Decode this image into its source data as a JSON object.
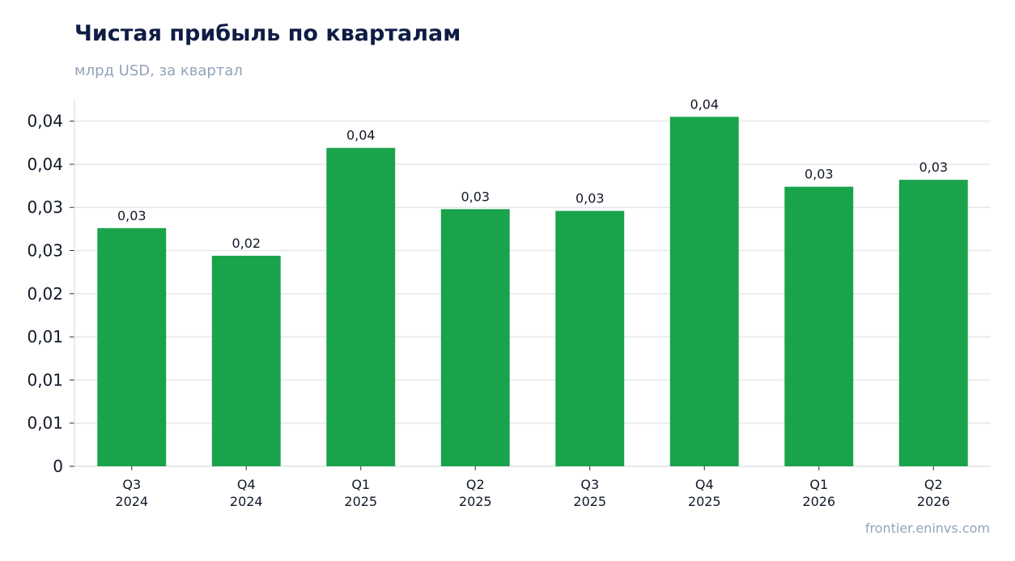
{
  "header": {
    "title": "Чистая прибыль по кварталам",
    "subtitle": "млрд USD, за квартал"
  },
  "footer": {
    "source": "frontier.eninvs.com"
  },
  "colors": {
    "bar": "#19a34a",
    "grid": "#e5e7eb",
    "axis": "#d1d5db",
    "title": "#0f1d45",
    "muted": "#94a3b8"
  },
  "chart_data": {
    "type": "bar",
    "title": "Чистая прибыль по кварталам",
    "subtitle": "млрд USD, за квартал",
    "categories": [
      [
        "Q3",
        "2024"
      ],
      [
        "Q4",
        "2024"
      ],
      [
        "Q1",
        "2025"
      ],
      [
        "Q2",
        "2025"
      ],
      [
        "Q3",
        "2025"
      ],
      [
        "Q4",
        "2025"
      ],
      [
        "Q1",
        "2026"
      ],
      [
        "Q2",
        "2026"
      ]
    ],
    "values": [
      0.0276,
      0.0244,
      0.0369,
      0.0298,
      0.0296,
      0.0405,
      0.0324,
      0.0332
    ],
    "data_labels": [
      "0,03",
      "0,02",
      "0,04",
      "0,03",
      "0,03",
      "0,04",
      "0,03",
      "0,03"
    ],
    "y_ticks": [
      0,
      0.005,
      0.01,
      0.015,
      0.02,
      0.025,
      0.03,
      0.035,
      0.04
    ],
    "y_tick_labels": [
      "0",
      "0,01",
      "0,01",
      "0,01",
      "0,02",
      "0,03",
      "0,03",
      "0,04",
      "0,04"
    ],
    "ylim": [
      0,
      0.0425
    ],
    "grid": true,
    "legend": "none"
  }
}
